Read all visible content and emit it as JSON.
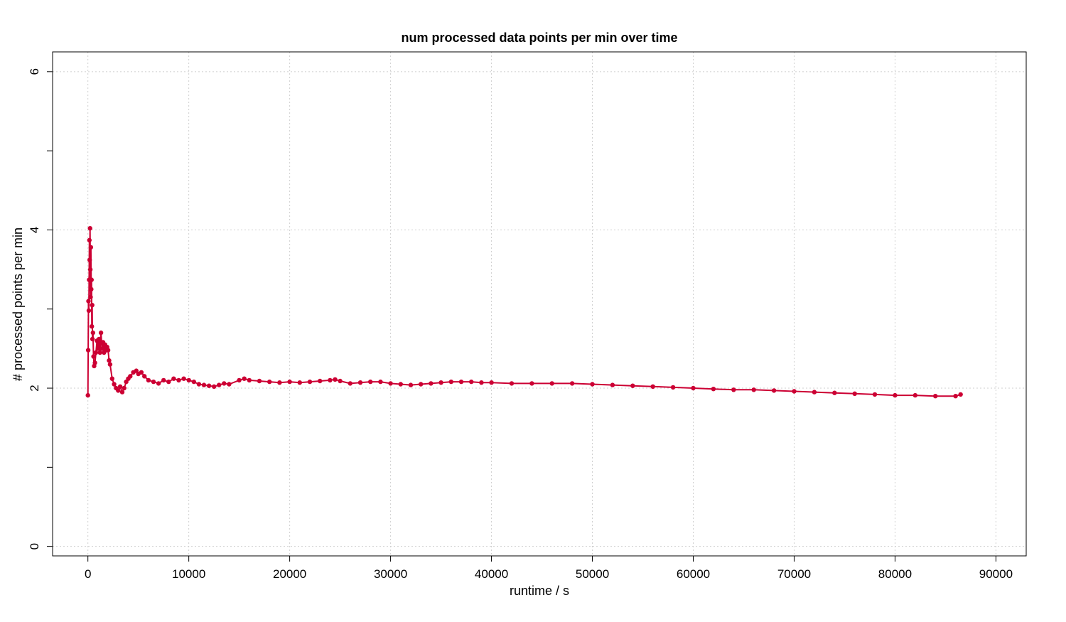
{
  "chart_data": {
    "type": "line",
    "title": "num processed data points per min over time",
    "xlabel": "runtime / s",
    "ylabel": "# processed points per min",
    "xlim": [
      -3500,
      93000
    ],
    "ylim": [
      -0.12,
      6.25
    ],
    "x_ticks": [
      0,
      10000,
      20000,
      30000,
      40000,
      50000,
      60000,
      70000,
      80000,
      90000
    ],
    "x_tick_labels": [
      "0",
      "10000",
      "20000",
      "30000",
      "40000",
      "50000",
      "60000",
      "70000",
      "80000",
      "90000"
    ],
    "y_ticks": [
      0,
      1,
      2,
      3,
      4,
      5,
      6
    ],
    "y_tick_labels": [
      "0",
      "",
      "2",
      "",
      "4",
      "",
      "6"
    ],
    "grid": true,
    "series_color": "#cc0033",
    "series": [
      {
        "x": [
          0,
          30,
          60,
          90,
          120,
          150,
          180,
          210,
          240,
          270,
          300,
          330,
          360,
          390,
          420,
          450,
          500,
          560,
          620,
          700,
          800,
          900,
          1000,
          1100,
          1200,
          1300,
          1400,
          1500,
          1600,
          1700,
          1800,
          1900,
          2000,
          2100,
          2200,
          2400,
          2600,
          2800,
          3000,
          3200,
          3400,
          3600,
          3800,
          4000,
          4200,
          4500,
          4800,
          5000,
          5300,
          5600,
          6000,
          6500,
          7000,
          7500,
          8000,
          8500,
          9000,
          9500,
          10000,
          10500,
          11000,
          11500,
          12000,
          12500,
          13000,
          13500,
          14000,
          15000,
          15500,
          16000,
          17000,
          18000,
          19000,
          20000,
          21000,
          22000,
          23000,
          24000,
          24500,
          25000,
          26000,
          27000,
          28000,
          29000,
          30000,
          31000,
          32000,
          33000,
          34000,
          35000,
          36000,
          37000,
          38000,
          39000,
          40000,
          42000,
          44000,
          46000,
          48000,
          50000,
          52000,
          54000,
          56000,
          58000,
          60000,
          62000,
          64000,
          66000,
          68000,
          70000,
          72000,
          74000,
          76000,
          78000,
          80000,
          82000,
          84000,
          86000,
          86500
        ],
        "y": [
          1.91,
          2.48,
          3.1,
          2.98,
          3.37,
          3.87,
          3.62,
          4.02,
          3.5,
          3.15,
          3.78,
          3.25,
          3.37,
          2.78,
          3.05,
          2.62,
          2.7,
          2.4,
          2.28,
          2.32,
          2.45,
          2.6,
          2.5,
          2.62,
          2.45,
          2.7,
          2.5,
          2.58,
          2.45,
          2.55,
          2.48,
          2.52,
          2.48,
          2.35,
          2.3,
          2.12,
          2.05,
          2.0,
          1.97,
          2.02,
          1.95,
          2.0,
          2.08,
          2.12,
          2.15,
          2.2,
          2.22,
          2.18,
          2.2,
          2.15,
          2.1,
          2.08,
          2.06,
          2.1,
          2.08,
          2.12,
          2.1,
          2.12,
          2.1,
          2.08,
          2.05,
          2.04,
          2.03,
          2.02,
          2.04,
          2.06,
          2.05,
          2.1,
          2.12,
          2.1,
          2.09,
          2.08,
          2.07,
          2.08,
          2.07,
          2.08,
          2.09,
          2.1,
          2.11,
          2.09,
          2.06,
          2.07,
          2.08,
          2.08,
          2.06,
          2.05,
          2.04,
          2.05,
          2.06,
          2.07,
          2.08,
          2.08,
          2.08,
          2.07,
          2.07,
          2.06,
          2.06,
          2.06,
          2.06,
          2.05,
          2.04,
          2.03,
          2.02,
          2.01,
          2.0,
          1.99,
          1.98,
          1.98,
          1.97,
          1.96,
          1.95,
          1.94,
          1.93,
          1.92,
          1.91,
          1.91,
          1.9,
          1.9,
          1.92
        ]
      }
    ]
  }
}
